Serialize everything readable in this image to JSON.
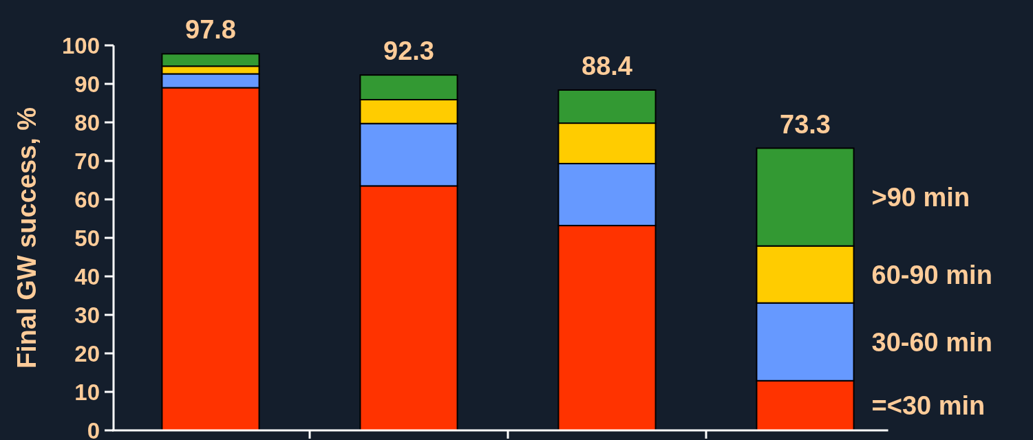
{
  "chart_data": {
    "type": "bar",
    "stacked": true,
    "ylabel": "Final GW success, %",
    "categories": [
      null,
      null,
      null,
      null
    ],
    "series": [
      {
        "name": "=<30 min",
        "color": "#ff3300",
        "values": [
          89.0,
          63.5,
          53.2,
          12.9
        ]
      },
      {
        "name": "30-60 min",
        "color": "#6699ff",
        "values": [
          3.6,
          16.2,
          16.1,
          20.2
        ]
      },
      {
        "name": "60-90 min",
        "color": "#ffcc00",
        "values": [
          2.0,
          6.2,
          10.5,
          14.8
        ]
      },
      {
        "name": ">90 min",
        "color": "#339933",
        "values": [
          3.2,
          6.4,
          8.6,
          25.4
        ]
      }
    ],
    "totals": [
      "97.8",
      "92.3",
      "88.4",
      "73.3"
    ],
    "ylim": [
      0,
      100
    ],
    "yticks": [
      0,
      10,
      20,
      30,
      40,
      50,
      60,
      70,
      80,
      90,
      100
    ],
    "legend": "right"
  }
}
